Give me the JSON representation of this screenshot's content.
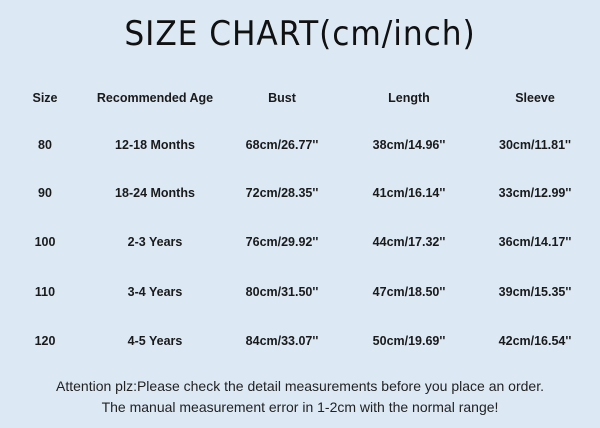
{
  "title": "SIZE CHART(cm/inch)",
  "table": {
    "headers": [
      "Size",
      "Recommended Age",
      "Bust",
      "Length",
      "Sleeve"
    ],
    "rows": [
      [
        "80",
        "12-18 Months",
        "68cm/26.77''",
        "38cm/14.96''",
        "30cm/11.81''"
      ],
      [
        "90",
        "18-24 Months",
        "72cm/28.35''",
        "41cm/16.14''",
        "33cm/12.99''"
      ],
      [
        "100",
        "2-3 Years",
        "76cm/29.92''",
        "44cm/17.32''",
        "36cm/14.17''"
      ],
      [
        "110",
        "3-4 Years",
        "80cm/31.50''",
        "47cm/18.50''",
        "39cm/15.35''"
      ],
      [
        "120",
        "4-5 Years",
        "84cm/33.07''",
        "50cm/19.69''",
        "42cm/16.54''"
      ]
    ]
  },
  "footer": {
    "line1": "Attention plz:Please check the detail measurements before you place an order.",
    "line2": "The manual measurement error in 1-2cm with the normal range!"
  },
  "colors": {
    "background": "#dce9f5",
    "text": "#1a1a1a"
  }
}
